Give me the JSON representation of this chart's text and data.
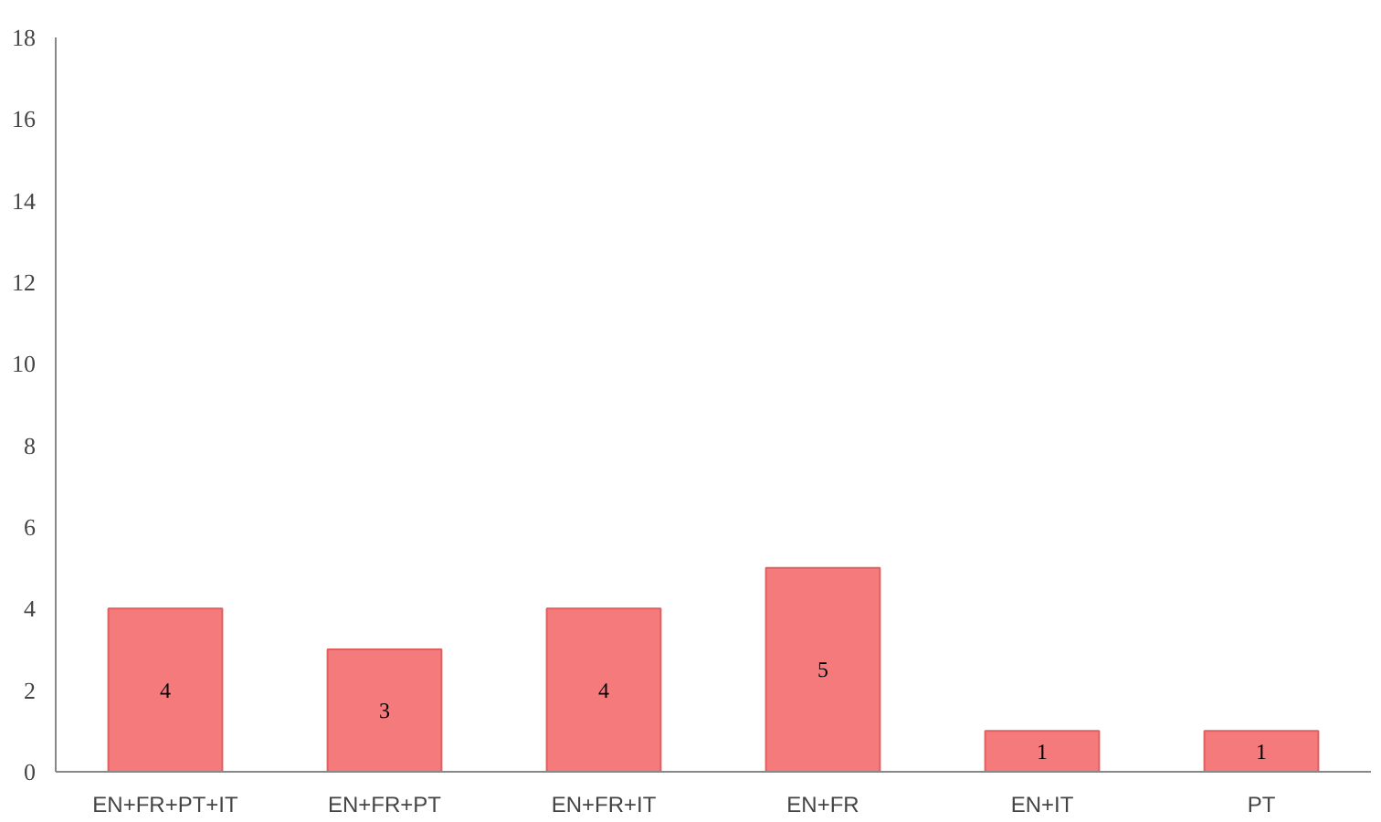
{
  "chart_data": {
    "type": "bar",
    "categories": [
      "EN+FR+PT+IT",
      "EN+FR+PT",
      "EN+FR+IT",
      "EN+FR",
      "EN+IT",
      "PT"
    ],
    "values": [
      4,
      3,
      4,
      5,
      1,
      1
    ],
    "color": "#f47a7c",
    "ylim": [
      0,
      18
    ],
    "yticks": [
      0,
      2,
      4,
      6,
      8,
      10,
      12,
      14,
      16,
      18
    ],
    "grid": false,
    "data_labels": true
  }
}
